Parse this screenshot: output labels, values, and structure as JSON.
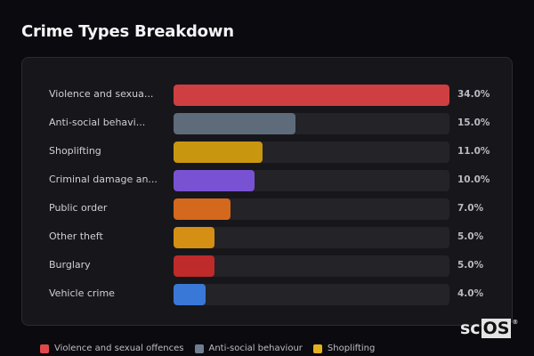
{
  "title": "Crime Types Breakdown",
  "chart_data": {
    "type": "bar",
    "orientation": "horizontal",
    "title": "Crime Types Breakdown",
    "categories": [
      "Violence and sexual offences",
      "Anti-social behaviour",
      "Shoplifting",
      "Criminal damage and arson",
      "Public order",
      "Other theft",
      "Burglary",
      "Vehicle crime"
    ],
    "display_labels": [
      "Violence and sexua...",
      "Anti-social behavi...",
      "Shoplifting",
      "Criminal damage an...",
      "Public order",
      "Other theft",
      "Burglary",
      "Vehicle crime"
    ],
    "values": [
      34.0,
      15.0,
      11.0,
      10.0,
      7.0,
      5.0,
      5.0,
      4.0
    ],
    "value_labels": [
      "34.0%",
      "15.0%",
      "11.0%",
      "10.0%",
      "7.0%",
      "5.0%",
      "5.0%",
      "4.0%"
    ],
    "colors": [
      "#cf3f41",
      "#5e6b7b",
      "#c9960f",
      "#7952d3",
      "#d4681d",
      "#d48f14",
      "#bf2a2a",
      "#3a78d8"
    ],
    "unit": "%",
    "xlabel": "",
    "ylabel": "",
    "scale_max": 34.0,
    "grid": false,
    "legend_position": "bottom",
    "legend": [
      {
        "label": "Violence and sexual offences",
        "color": "#e0484a"
      },
      {
        "label": "Anti-social behaviour",
        "color": "#6f7d90"
      },
      {
        "label": "Shoplifting",
        "color": "#e4b11c"
      }
    ]
  },
  "watermark": {
    "prefix": "sc",
    "boxed": "OS",
    "reg": "®"
  }
}
